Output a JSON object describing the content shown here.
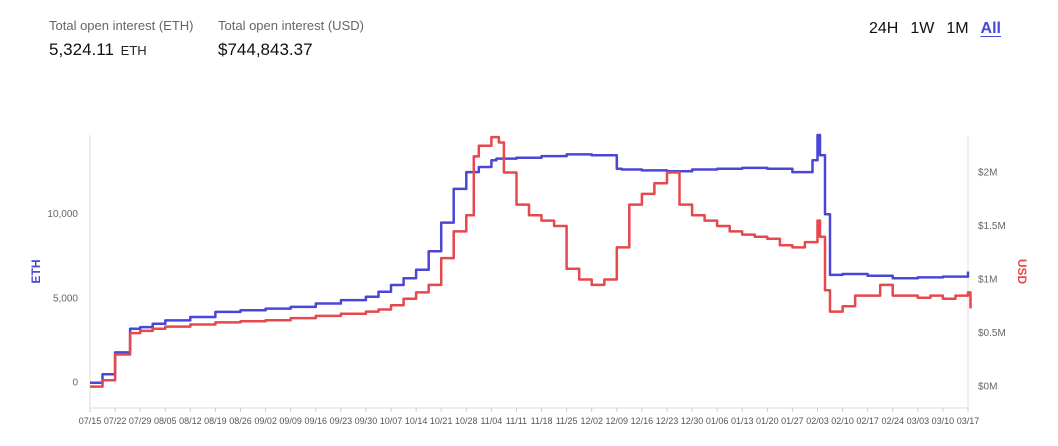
{
  "stats": [
    {
      "label": "Total open interest (ETH)",
      "value": "5,324.11",
      "unit": "ETH"
    },
    {
      "label": "Total open interest (USD)",
      "value": "$744,843.37",
      "unit": ""
    }
  ],
  "range_tabs": [
    {
      "label": "24H",
      "active": false
    },
    {
      "label": "1W",
      "active": false
    },
    {
      "label": "1M",
      "active": false
    },
    {
      "label": "All",
      "active": true
    }
  ],
  "colors": {
    "eth": "#4a47d6",
    "usd": "#e5484d",
    "accent": "#4a47d6"
  },
  "chart_data": {
    "type": "line",
    "title": "",
    "xlabel": "",
    "ylabel": "ETH",
    "y2label": "USD",
    "ylim": [
      -1500,
      14700
    ],
    "y2lim": [
      -200000,
      2350000
    ],
    "yticks": [
      {
        "v": 0,
        "label": "0"
      },
      {
        "v": 5000,
        "label": "5,000"
      },
      {
        "v": 10000,
        "label": "10,000"
      }
    ],
    "y2ticks": [
      {
        "v": 0,
        "label": "$0M"
      },
      {
        "v": 500000,
        "label": "$0.5M"
      },
      {
        "v": 1000000,
        "label": "$1M"
      },
      {
        "v": 1500000,
        "label": "$1.5M"
      },
      {
        "v": 2000000,
        "label": "$2M"
      }
    ],
    "xtick_labels": [
      "07/15",
      "07/22",
      "07/29",
      "08/05",
      "08/12",
      "08/19",
      "08/26",
      "09/02",
      "09/09",
      "09/16",
      "09/23",
      "09/30",
      "10/07",
      "10/14",
      "10/21",
      "10/28",
      "11/04",
      "11/11",
      "11/18",
      "11/25",
      "12/02",
      "12/09",
      "12/16",
      "12/23",
      "12/30",
      "01/06",
      "01/13",
      "01/20",
      "01/27",
      "02/03",
      "02/10",
      "02/17",
      "02/24",
      "03/03",
      "03/10",
      "03/17"
    ],
    "grid": false,
    "series": [
      {
        "name": "ETH",
        "axis": "left",
        "x": [
          0,
          0.5,
          1,
          1.6,
          2,
          2.5,
          3,
          4,
          5,
          6,
          7,
          8,
          9,
          10,
          11,
          11.5,
          12,
          12.5,
          13,
          13.5,
          14,
          14.5,
          15,
          15.5,
          16,
          16.2,
          16.5,
          17,
          18,
          19,
          20,
          21,
          21.2,
          22,
          23,
          24,
          25,
          26,
          27,
          28,
          28.8,
          29,
          29.1,
          29.3,
          29.5,
          30,
          31,
          32,
          33,
          34,
          35
        ],
        "y": [
          0,
          500,
          1800,
          3200,
          3300,
          3500,
          3700,
          3900,
          4200,
          4300,
          4400,
          4500,
          4700,
          4900,
          5100,
          5400,
          5800,
          6200,
          6700,
          7800,
          9500,
          11500,
          12500,
          12800,
          13200,
          13300,
          13300,
          13350,
          13450,
          13550,
          13500,
          12700,
          12650,
          12600,
          12550,
          12650,
          12700,
          12750,
          12700,
          12500,
          13200,
          14700,
          13500,
          10000,
          6400,
          6450,
          6350,
          6200,
          6250,
          6300,
          6600
        ]
      },
      {
        "name": "USD",
        "axis": "right",
        "x": [
          0,
          0.5,
          1,
          1.6,
          2,
          2.5,
          3,
          4,
          5,
          6,
          7,
          8,
          9,
          10,
          11,
          11.5,
          12,
          12.5,
          13,
          13.5,
          14,
          14.5,
          15,
          15.3,
          15.5,
          16,
          16.3,
          16.5,
          17,
          17.5,
          18,
          18.5,
          19,
          19.5,
          20,
          20.5,
          21,
          21.5,
          22,
          22.5,
          23,
          23.5,
          24,
          24.5,
          25,
          25.5,
          26,
          26.5,
          27,
          27.5,
          28,
          28.5,
          29,
          29.1,
          29.3,
          29.5,
          30,
          30.5,
          31,
          31.5,
          32,
          32.5,
          33,
          33.5,
          34,
          34.5,
          35,
          35.1
        ],
        "y": [
          0,
          60000,
          300000,
          500000,
          520000,
          540000,
          560000,
          580000,
          600000,
          610000,
          620000,
          640000,
          660000,
          680000,
          700000,
          720000,
          760000,
          820000,
          880000,
          950000,
          1200000,
          1450000,
          1600000,
          2150000,
          2250000,
          2330000,
          2280000,
          2000000,
          1700000,
          1600000,
          1550000,
          1500000,
          1100000,
          1000000,
          950000,
          1000000,
          1300000,
          1700000,
          1800000,
          1900000,
          2000000,
          1700000,
          1600000,
          1550000,
          1500000,
          1450000,
          1420000,
          1400000,
          1380000,
          1320000,
          1300000,
          1350000,
          1550000,
          1400000,
          900000,
          700000,
          750000,
          850000,
          850000,
          950000,
          850000,
          850000,
          830000,
          850000,
          820000,
          850000,
          880000,
          730000
        ]
      }
    ]
  }
}
